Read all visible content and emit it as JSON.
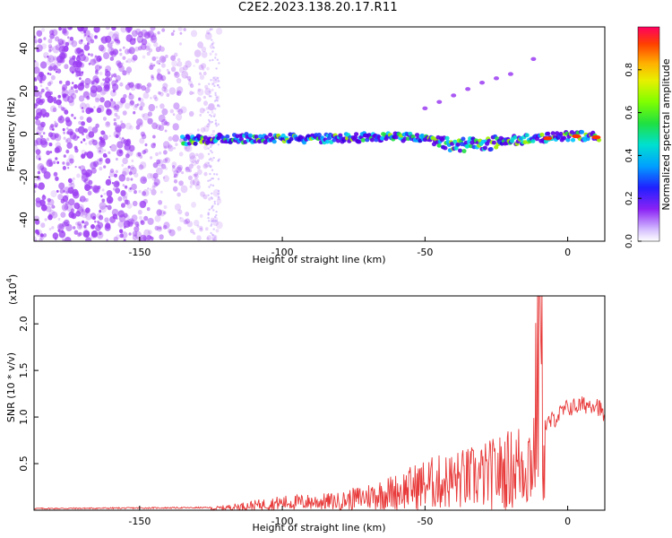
{
  "title": "C2E2.2023.138.20.17.R11",
  "colors": {
    "snr_line": "#e83a3a",
    "spectrum_scatter": "#9b3cf2",
    "axes": "#000000"
  },
  "chart_data": [
    {
      "type": "heatmap",
      "title": "C2E2.2023.138.20.17.R11",
      "xlabel": "Height of straight line (km)",
      "ylabel": "Frequency (Hz)",
      "xlim": [
        -187,
        13
      ],
      "ylim": [
        -50,
        50
      ],
      "xticks": [
        -150,
        -100,
        -50,
        0
      ],
      "yticks": [
        -40,
        -20,
        0,
        20,
        40
      ],
      "colorbar": {
        "label": "Normalized spectral amplitude",
        "range": [
          0,
          1
        ],
        "ticks": [
          "0.0",
          "0.2",
          "0.4",
          "0.6",
          "0.8"
        ],
        "colormap": "rainbow"
      },
      "ridge": {
        "description_points_x": [
          -135,
          -120,
          -100,
          -80,
          -60,
          -50,
          -40,
          -30,
          -20,
          -10,
          0,
          10
        ],
        "description_points_y": [
          -3,
          -2,
          -2,
          -2,
          -1,
          -2,
          -5,
          -5,
          -3,
          -2,
          -1,
          -1
        ]
      }
    },
    {
      "type": "line",
      "xlabel": "Height of straight line (km)",
      "ylabel": "SNR (10 * v/v)",
      "y_multiplier_label": "(x10",
      "y_multiplier_exp": "4",
      "xlim": [
        -187,
        13
      ],
      "ylim": [
        0,
        2.3
      ],
      "xticks": [
        -150,
        -100,
        -50,
        0
      ],
      "yticks": [
        "0.5",
        "1.0",
        "1.5",
        "2.0"
      ],
      "trend": {
        "x": [
          -187,
          -125,
          -115,
          -100,
          -80,
          -60,
          -50,
          -40,
          -30,
          -20,
          -12,
          -10,
          -8,
          0,
          10,
          13
        ],
        "y": [
          0.01,
          0.02,
          0.05,
          0.1,
          0.12,
          0.25,
          0.35,
          0.4,
          0.45,
          0.55,
          0.7,
          2.3,
          0.9,
          1.1,
          1.15,
          1.0
        ]
      }
    }
  ]
}
